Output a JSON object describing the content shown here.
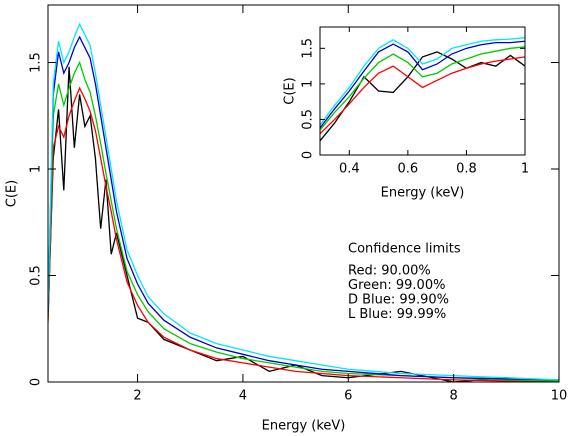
{
  "chart_data": [
    {
      "type": "line",
      "xlabel": "Energy (keV)",
      "ylabel": "C(E)",
      "xlim": [
        0.3,
        10
      ],
      "ylim": [
        0,
        1.77
      ],
      "xticks": [
        2,
        4,
        6,
        8,
        10
      ],
      "yticks": [
        0,
        0.5,
        1,
        1.5
      ],
      "legend_title": "Confidence limits",
      "x": [
        0.3,
        0.4,
        0.5,
        0.6,
        0.7,
        0.8,
        0.9,
        1.0,
        1.1,
        1.2,
        1.3,
        1.4,
        1.5,
        1.6,
        1.8,
        2.0,
        2.2,
        2.5,
        3,
        3.5,
        4,
        4.5,
        5,
        5.5,
        6,
        7,
        8,
        9,
        10
      ],
      "series": [
        {
          "color": "#000000",
          "values": [
            0.3,
            1.05,
            1.28,
            0.9,
            1.48,
            1.1,
            1.35,
            1.2,
            1.25,
            1.05,
            0.72,
            0.95,
            0.6,
            0.7,
            0.5,
            0.3,
            0.28,
            0.2,
            0.15,
            0.1,
            0.12,
            0.05,
            0.08,
            0.03,
            0.02,
            0.05,
            0.0,
            0.02,
            0.0
          ]
        },
        {
          "name": "Red: 90.00%",
          "color": "#ff0000",
          "values": [
            0.28,
            1.1,
            1.2,
            1.15,
            1.25,
            1.32,
            1.38,
            1.33,
            1.27,
            1.18,
            1.05,
            0.92,
            0.8,
            0.67,
            0.47,
            0.36,
            0.28,
            0.21,
            0.15,
            0.11,
            0.09,
            0.07,
            0.05,
            0.04,
            0.03,
            0.02,
            0.01,
            0.005,
            0.002
          ]
        },
        {
          "name": "Green: 99.00%",
          "color": "#00cc00",
          "values": [
            0.3,
            1.25,
            1.4,
            1.3,
            1.38,
            1.45,
            1.5,
            1.42,
            1.36,
            1.25,
            1.12,
            0.98,
            0.85,
            0.72,
            0.52,
            0.41,
            0.33,
            0.25,
            0.18,
            0.14,
            0.11,
            0.09,
            0.07,
            0.05,
            0.04,
            0.03,
            0.02,
            0.01,
            0.005
          ]
        },
        {
          "name": "D Blue: 99.90%",
          "color": "#0000cc",
          "values": [
            0.33,
            1.35,
            1.55,
            1.45,
            1.5,
            1.57,
            1.62,
            1.57,
            1.52,
            1.4,
            1.25,
            1.1,
            0.95,
            0.8,
            0.58,
            0.46,
            0.37,
            0.29,
            0.21,
            0.16,
            0.13,
            0.1,
            0.08,
            0.06,
            0.05,
            0.03,
            0.02,
            0.015,
            0.01
          ]
        },
        {
          "name": "L Blue: 99.99%",
          "color": "#00e5ff",
          "values": [
            0.35,
            1.4,
            1.6,
            1.5,
            1.55,
            1.62,
            1.68,
            1.63,
            1.58,
            1.45,
            1.3,
            1.15,
            1.0,
            0.85,
            0.62,
            0.5,
            0.4,
            0.32,
            0.23,
            0.18,
            0.15,
            0.12,
            0.1,
            0.08,
            0.06,
            0.04,
            0.03,
            0.02,
            0.01
          ]
        }
      ]
    },
    {
      "type": "line",
      "xlabel": "Energy (keV)",
      "ylabel": "C(E)",
      "xlim": [
        0.3,
        1
      ],
      "ylim": [
        0,
        1.8
      ],
      "xticks": [
        0.4,
        0.6,
        0.8,
        1
      ],
      "yticks": [
        0,
        0.5,
        1,
        1.5
      ],
      "x": [
        0.3,
        0.35,
        0.4,
        0.45,
        0.5,
        0.55,
        0.6,
        0.65,
        0.7,
        0.75,
        0.8,
        0.85,
        0.9,
        0.95,
        1.0
      ],
      "series": [
        {
          "color": "#000000",
          "values": [
            0.2,
            0.45,
            0.75,
            1.1,
            0.9,
            0.88,
            1.1,
            1.38,
            1.45,
            1.35,
            1.22,
            1.3,
            1.25,
            1.4,
            1.25
          ]
        },
        {
          "color": "#ff0000",
          "values": [
            0.3,
            0.5,
            0.72,
            0.95,
            1.15,
            1.25,
            1.1,
            0.95,
            1.05,
            1.15,
            1.22,
            1.28,
            1.32,
            1.35,
            1.38
          ]
        },
        {
          "color": "#00cc00",
          "values": [
            0.35,
            0.6,
            0.82,
            1.08,
            1.3,
            1.42,
            1.3,
            1.1,
            1.15,
            1.28,
            1.35,
            1.42,
            1.46,
            1.5,
            1.52
          ]
        },
        {
          "color": "#0000cc",
          "values": [
            0.38,
            0.65,
            0.9,
            1.18,
            1.45,
            1.56,
            1.45,
            1.2,
            1.28,
            1.42,
            1.5,
            1.55,
            1.58,
            1.58,
            1.6
          ]
        },
        {
          "color": "#00e5ff",
          "values": [
            0.42,
            0.7,
            0.95,
            1.25,
            1.5,
            1.62,
            1.5,
            1.28,
            1.35,
            1.5,
            1.55,
            1.6,
            1.62,
            1.63,
            1.65
          ]
        }
      ]
    }
  ]
}
